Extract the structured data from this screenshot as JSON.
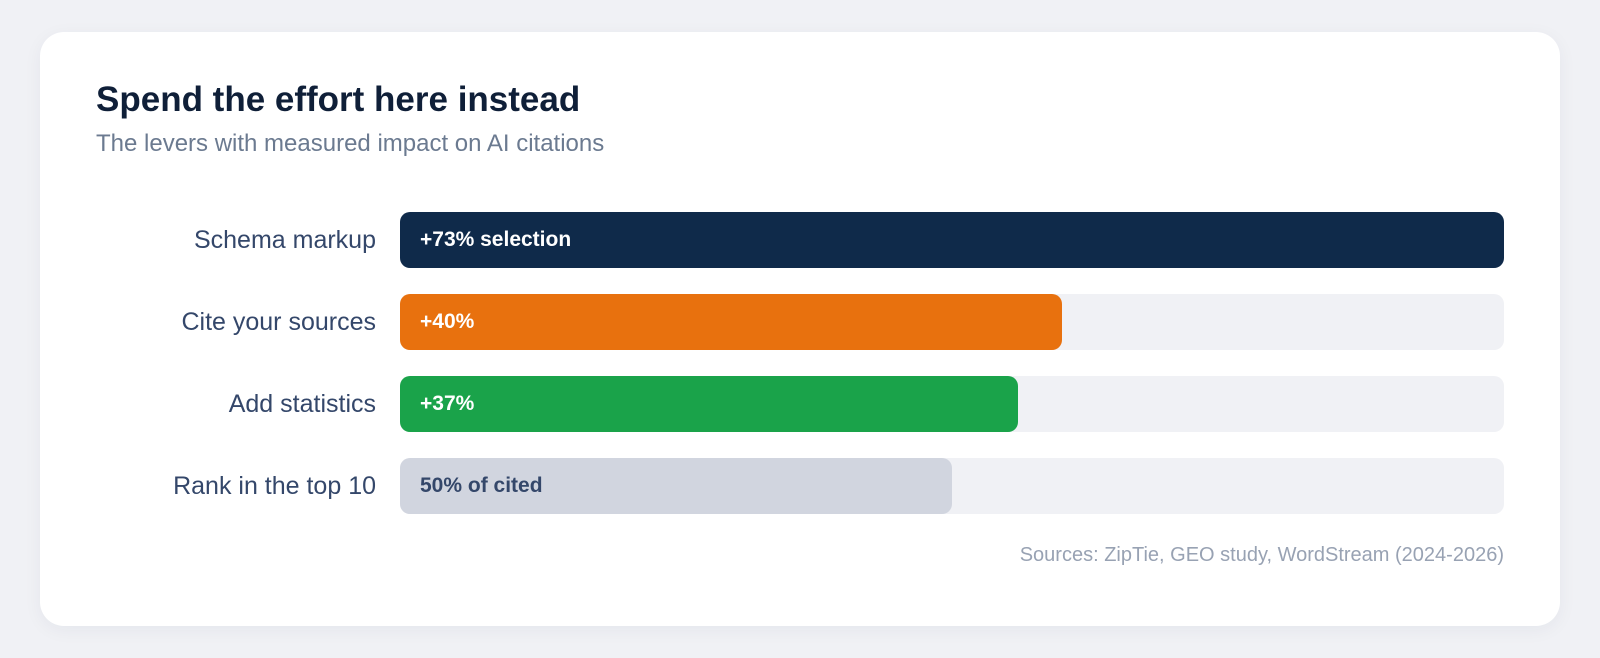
{
  "chart_data": {
    "type": "bar",
    "orientation": "horizontal",
    "title": "Spend the effort here instead",
    "subtitle": "The levers with measured impact on AI citations",
    "categories": [
      "Schema markup",
      "Cite your sources",
      "Add statistics",
      "Rank in the top 10"
    ],
    "values": [
      100,
      60,
      56,
      50
    ],
    "data_labels": [
      "+73% selection",
      "+40%",
      "+37%",
      "50% of cited"
    ],
    "colors": [
      "#0f2a4a",
      "#e8710e",
      "#1aa34a",
      "#d1d5df"
    ],
    "label_colors": [
      "#ffffff",
      "#ffffff",
      "#ffffff",
      "#34476a"
    ],
    "track_color": "#f0f1f5",
    "xlim": [
      0,
      100
    ],
    "grid": false,
    "legend": "none",
    "source": "Sources: ZipTie, GEO study, WordStream (2024-2026)"
  }
}
